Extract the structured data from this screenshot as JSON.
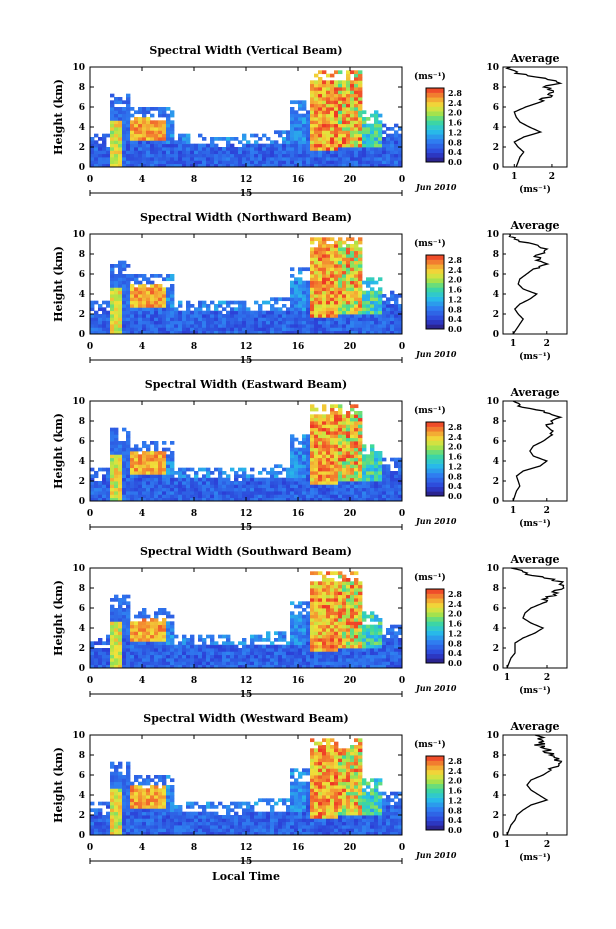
{
  "shared": {
    "ylabel": "Height (km)",
    "xlabel": "Local Time",
    "date_label": "Jun 2010",
    "day_label": "15",
    "unit_label": "(ms⁻¹)",
    "profile_title": "Average",
    "profile_xlabel": "(ms⁻¹)",
    "colorbar_ticks": [
      "2.8",
      "2.4",
      "2.0",
      "1.6",
      "1.2",
      "0.8",
      "0.4",
      "0.0"
    ]
  },
  "chart_data": [
    {
      "type": "heatmap",
      "title": "Spectral Width (Vertical Beam)",
      "x_ticks": [
        "0",
        "4",
        "8",
        "12",
        "16",
        "20",
        "0"
      ],
      "xlim": [
        0,
        24
      ],
      "y_ticks": [
        "0",
        "2",
        "4",
        "6",
        "8",
        "10"
      ],
      "ylim": [
        0,
        10
      ],
      "colorbar": {
        "min": 0,
        "max": 3.0,
        "unit": "ms⁻¹"
      },
      "profile": {
        "title": "Average",
        "x_ticks": [
          "1",
          "2"
        ],
        "x_tick_values": [
          1,
          2
        ],
        "xlim": [
          0.7,
          2.4
        ],
        "y_ticks": [
          "0",
          "2",
          "4",
          "6",
          "8",
          "10"
        ],
        "heights": [
          0,
          0.5,
          1,
          1.5,
          2,
          2.5,
          3,
          3.5,
          4,
          4.5,
          5,
          5.5,
          6,
          6.5,
          7,
          7.5,
          8,
          8.5,
          9,
          9.5,
          10
        ],
        "values": [
          1.05,
          1.1,
          1.15,
          1.25,
          1.1,
          1.0,
          1.25,
          1.7,
          1.4,
          1.15,
          1.05,
          1.0,
          1.3,
          1.7,
          1.9,
          2.1,
          1.8,
          2.2,
          1.6,
          1.0,
          0.9
        ]
      }
    },
    {
      "type": "heatmap",
      "title": "Spectral Width (Northward Beam)",
      "x_ticks": [
        "0",
        "4",
        "8",
        "12",
        "16",
        "20",
        "0"
      ],
      "xlim": [
        0,
        24
      ],
      "y_ticks": [
        "0",
        "2",
        "4",
        "6",
        "8",
        "10"
      ],
      "ylim": [
        0,
        10
      ],
      "colorbar": {
        "min": 0,
        "max": 3.0,
        "unit": "ms⁻¹"
      },
      "profile": {
        "title": "Average",
        "x_ticks": [
          "1",
          "2"
        ],
        "x_tick_values": [
          1,
          2
        ],
        "xlim": [
          0.7,
          2.6
        ],
        "y_ticks": [
          "0",
          "2",
          "4",
          "6",
          "8",
          "10"
        ],
        "heights": [
          0,
          0.5,
          1,
          1.5,
          2,
          2.5,
          3,
          3.5,
          4,
          4.5,
          5,
          5.5,
          6,
          6.5,
          7,
          7.5,
          8,
          8.5,
          9,
          9.5,
          10
        ],
        "values": [
          1.0,
          1.1,
          1.2,
          1.3,
          1.15,
          1.05,
          1.2,
          1.5,
          1.7,
          1.3,
          1.15,
          1.2,
          1.4,
          1.6,
          1.9,
          1.7,
          1.8,
          2.0,
          1.5,
          1.0,
          0.9
        ]
      }
    },
    {
      "type": "heatmap",
      "title": "Spectral Width (Eastward Beam)",
      "x_ticks": [
        "0",
        "4",
        "8",
        "12",
        "16",
        "20",
        "0"
      ],
      "xlim": [
        0,
        24
      ],
      "y_ticks": [
        "0",
        "2",
        "4",
        "6",
        "8",
        "10"
      ],
      "ylim": [
        0,
        10
      ],
      "colorbar": {
        "min": 0,
        "max": 3.0,
        "unit": "ms⁻¹"
      },
      "profile": {
        "title": "Average",
        "x_ticks": [
          "1",
          "2"
        ],
        "x_tick_values": [
          1,
          2
        ],
        "xlim": [
          0.7,
          2.6
        ],
        "y_ticks": [
          "0",
          "2",
          "4",
          "6",
          "8",
          "10"
        ],
        "heights": [
          0,
          0.5,
          1,
          1.5,
          2,
          2.5,
          3,
          3.5,
          4,
          4.5,
          5,
          5.5,
          6,
          6.5,
          7,
          7.5,
          8,
          8.5,
          9,
          9.5,
          10
        ],
        "values": [
          1.0,
          1.05,
          1.1,
          1.2,
          1.15,
          1.1,
          1.3,
          1.8,
          2.0,
          1.6,
          1.5,
          1.6,
          1.9,
          2.1,
          2.3,
          2.0,
          2.2,
          2.4,
          1.8,
          1.2,
          1.0
        ]
      }
    },
    {
      "type": "heatmap",
      "title": "Spectral Width (Southward Beam)",
      "x_ticks": [
        "0",
        "4",
        "8",
        "12",
        "16",
        "20",
        "0"
      ],
      "xlim": [
        0,
        24
      ],
      "y_ticks": [
        "0",
        "2",
        "4",
        "6",
        "8",
        "10"
      ],
      "ylim": [
        0,
        10
      ],
      "colorbar": {
        "min": 0,
        "max": 3.0,
        "unit": "ms⁻¹"
      },
      "profile": {
        "title": "Average",
        "x_ticks": [
          "1",
          "2"
        ],
        "x_tick_values": [
          1,
          2
        ],
        "xlim": [
          0.9,
          2.5
        ],
        "y_ticks": [
          "0",
          "2",
          "4",
          "6",
          "8",
          "10"
        ],
        "heights": [
          0,
          0.5,
          1,
          1.5,
          2,
          2.5,
          3,
          3.5,
          4,
          4.5,
          5,
          5.5,
          6,
          6.5,
          7,
          7.5,
          8,
          8.5,
          9,
          9.5,
          10
        ],
        "values": [
          1.0,
          1.05,
          1.1,
          1.2,
          1.2,
          1.2,
          1.4,
          1.7,
          1.9,
          1.6,
          1.4,
          1.45,
          1.6,
          1.9,
          2.0,
          2.2,
          2.3,
          2.4,
          2.0,
          1.4,
          1.1
        ]
      }
    },
    {
      "type": "heatmap",
      "title": "Spectral Width (Westward Beam)",
      "x_ticks": [
        "0",
        "4",
        "8",
        "12",
        "16",
        "20",
        "0"
      ],
      "xlim": [
        0,
        24
      ],
      "y_ticks": [
        "0",
        "2",
        "4",
        "6",
        "8",
        "10"
      ],
      "ylim": [
        0,
        10
      ],
      "colorbar": {
        "min": 0,
        "max": 3.0,
        "unit": "ms⁻¹"
      },
      "profile": {
        "title": "Average",
        "x_ticks": [
          "1",
          "2"
        ],
        "x_tick_values": [
          1,
          2
        ],
        "xlim": [
          0.9,
          2.5
        ],
        "y_ticks": [
          "0",
          "2",
          "4",
          "6",
          "8",
          "10"
        ],
        "heights": [
          0,
          0.5,
          1,
          1.5,
          2,
          2.5,
          3,
          3.5,
          4,
          4.5,
          5,
          5.5,
          6,
          6.5,
          7,
          7.5,
          8,
          8.5,
          9,
          9.5,
          10
        ],
        "values": [
          1.0,
          1.05,
          1.1,
          1.2,
          1.25,
          1.4,
          1.6,
          2.0,
          1.8,
          1.6,
          1.5,
          1.6,
          1.9,
          2.1,
          2.2,
          2.3,
          2.1,
          2.0,
          1.8,
          1.9,
          1.7
        ]
      }
    }
  ]
}
